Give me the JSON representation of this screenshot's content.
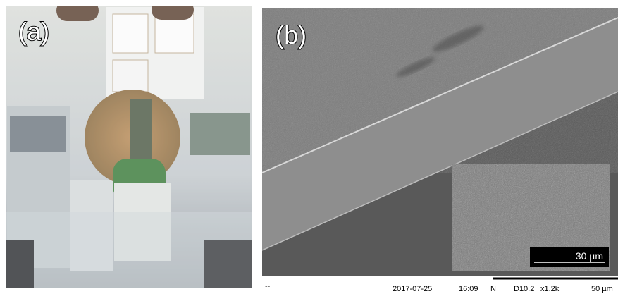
{
  "panels": {
    "a": {
      "label": "(a)"
    },
    "b": {
      "label": "(b)",
      "inset_scale": "30 µm",
      "footer": {
        "marker": "--",
        "date": "2017-07-25",
        "time": "16:09",
        "mode": "N",
        "detector": "D10.2",
        "magnification": "x1.2k",
        "scale": "50 µm"
      }
    }
  }
}
